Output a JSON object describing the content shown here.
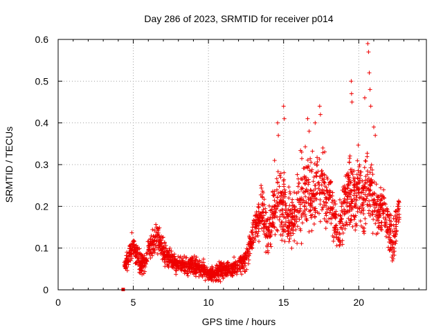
{
  "chart_data": {
    "type": "scatter",
    "title": "Day 286 of 2023, SRMTID for receiver p014",
    "xlabel": "GPS time / hours",
    "ylabel": "SRMTID / TECUs",
    "xlim": [
      0,
      24.5
    ],
    "ylim": [
      0,
      0.6
    ],
    "x_ticks": [
      0,
      5,
      10,
      15,
      20
    ],
    "x_tick_labels": [
      "0",
      "5",
      "10",
      "15",
      "20"
    ],
    "y_ticks": [
      0,
      0.1,
      0.2,
      0.3,
      0.4,
      0.5,
      0.6
    ],
    "y_tick_labels": [
      "0",
      "0.1",
      "0.2",
      "0.3",
      "0.4",
      "0.5",
      "0.6"
    ],
    "grid": true,
    "marker": "plus",
    "color": "#ee0000",
    "series": [
      {
        "name": "SRMTID",
        "profile_x": [
          4.4,
          4.6,
          4.9,
          5.1,
          5.4,
          5.8,
          6.0,
          6.3,
          6.6,
          7.0,
          7.5,
          8.0,
          8.5,
          9.0,
          9.5,
          10.0,
          10.5,
          11.0,
          11.5,
          12.0,
          12.5,
          12.9,
          13.2,
          13.6,
          14.0,
          14.3,
          14.6,
          15.0,
          15.3,
          15.6,
          16.0,
          16.3,
          16.6,
          17.0,
          17.3,
          17.6,
          18.0,
          18.3,
          18.6,
          19.0,
          19.3,
          19.6,
          20.0,
          20.3,
          20.6,
          21.0,
          21.3,
          21.6,
          22.0,
          22.3,
          22.7
        ],
        "profile_y": [
          0.06,
          0.07,
          0.1,
          0.09,
          0.07,
          0.06,
          0.1,
          0.11,
          0.13,
          0.09,
          0.07,
          0.06,
          0.06,
          0.06,
          0.05,
          0.04,
          0.04,
          0.05,
          0.05,
          0.06,
          0.07,
          0.12,
          0.16,
          0.18,
          0.13,
          0.18,
          0.22,
          0.2,
          0.17,
          0.16,
          0.21,
          0.23,
          0.25,
          0.21,
          0.26,
          0.24,
          0.22,
          0.19,
          0.13,
          0.2,
          0.24,
          0.22,
          0.25,
          0.2,
          0.26,
          0.22,
          0.18,
          0.2,
          0.15,
          0.11,
          0.2
        ],
        "spread_y": [
          0.01,
          0.02,
          0.03,
          0.03,
          0.03,
          0.02,
          0.03,
          0.03,
          0.03,
          0.03,
          0.02,
          0.02,
          0.02,
          0.02,
          0.02,
          0.015,
          0.02,
          0.02,
          0.02,
          0.02,
          0.03,
          0.03,
          0.04,
          0.05,
          0.05,
          0.06,
          0.07,
          0.08,
          0.07,
          0.06,
          0.08,
          0.09,
          0.08,
          0.08,
          0.08,
          0.07,
          0.07,
          0.06,
          0.05,
          0.07,
          0.08,
          0.08,
          0.08,
          0.08,
          0.09,
          0.07,
          0.06,
          0.06,
          0.06,
          0.05,
          0.05
        ],
        "spikes": [
          {
            "x": 14.6,
            "y": 0.4
          },
          {
            "x": 14.65,
            "y": 0.37
          },
          {
            "x": 15.0,
            "y": 0.44
          },
          {
            "x": 15.05,
            "y": 0.41
          },
          {
            "x": 16.6,
            "y": 0.41
          },
          {
            "x": 16.7,
            "y": 0.38
          },
          {
            "x": 17.4,
            "y": 0.44
          },
          {
            "x": 17.45,
            "y": 0.42
          },
          {
            "x": 17.1,
            "y": 0.4
          },
          {
            "x": 19.5,
            "y": 0.5
          },
          {
            "x": 19.52,
            "y": 0.47
          },
          {
            "x": 19.55,
            "y": 0.45
          },
          {
            "x": 20.4,
            "y": 0.46
          },
          {
            "x": 20.6,
            "y": 0.59
          },
          {
            "x": 20.65,
            "y": 0.57
          },
          {
            "x": 20.7,
            "y": 0.52
          },
          {
            "x": 20.75,
            "y": 0.48
          },
          {
            "x": 20.8,
            "y": 0.44
          },
          {
            "x": 21.0,
            "y": 0.39
          },
          {
            "x": 21.1,
            "y": 0.37
          },
          {
            "x": 13.5,
            "y": 0.25
          },
          {
            "x": 14.4,
            "y": 0.31
          },
          {
            "x": 16.2,
            "y": 0.33
          }
        ]
      },
      {
        "name": "marker-at-zero",
        "x": [
          4.35
        ],
        "y": [
          0.0
        ]
      }
    ]
  }
}
